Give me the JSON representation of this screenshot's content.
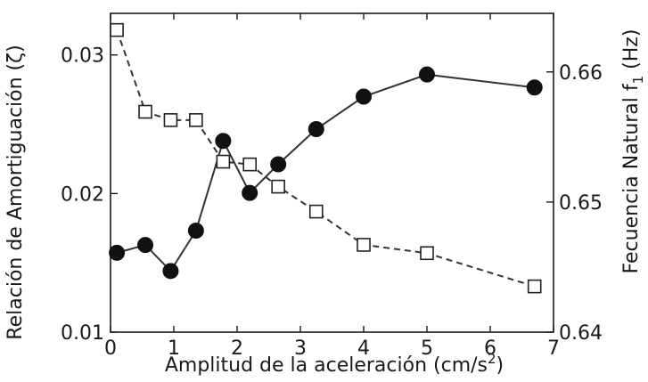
{
  "chart_data": {
    "type": "line",
    "xlabel": "Amplitud de la aceleración (cm/s²)",
    "xlabel_parts": {
      "main": "Amplitud de la aceleración (cm/s",
      "sup": "2",
      "close": ")"
    },
    "ylabel_left": "Relación de Amortiguación (ζ)",
    "ylabel_right": "Fecuencia Natural f₁ (Hz)",
    "ylabel_right_parts": {
      "pre": "Fecuencia Natural f",
      "sub": "1",
      "post": " (Hz)"
    },
    "xlim": [
      0,
      7
    ],
    "ylim_left": [
      0.01,
      0.033
    ],
    "ylim_right": [
      0.64,
      0.6645
    ],
    "x_ticks": [
      0,
      1,
      2,
      3,
      4,
      5,
      6,
      7
    ],
    "x_tick_labels": [
      "0",
      "1",
      "2",
      "3",
      "4",
      "5",
      "6",
      "7"
    ],
    "y_left_ticks": [
      0.01,
      0.02,
      0.03
    ],
    "y_left_tick_labels": [
      "0.01",
      "0.02",
      "0.03"
    ],
    "y_right_ticks": [
      0.64,
      0.65,
      0.66
    ],
    "y_right_tick_labels": [
      "0.64",
      "0.65",
      "0.66"
    ],
    "grid": false,
    "series": [
      {
        "axis": "right",
        "marker": "filled-circle",
        "line": "solid",
        "color": "#333333",
        "x": [
          0.1,
          0.55,
          0.95,
          1.35,
          1.78,
          2.2,
          2.65,
          3.25,
          4.0,
          5.0,
          6.7
        ],
        "y": [
          0.6461,
          0.6467,
          0.6447,
          0.6478,
          0.6547,
          0.6507,
          0.6529,
          0.6556,
          0.6581,
          0.6598,
          0.6588
        ]
      },
      {
        "axis": "left",
        "marker": "open-square",
        "line": "dashed",
        "color": "#333333",
        "x": [
          0.1,
          0.55,
          0.95,
          1.35,
          1.78,
          2.2,
          2.65,
          3.25,
          4.0,
          5.0,
          6.7
        ],
        "y": [
          0.0318,
          0.0259,
          0.0253,
          0.0253,
          0.0223,
          0.0221,
          0.0205,
          0.0187,
          0.0163,
          0.0157,
          0.0133
        ]
      }
    ]
  }
}
